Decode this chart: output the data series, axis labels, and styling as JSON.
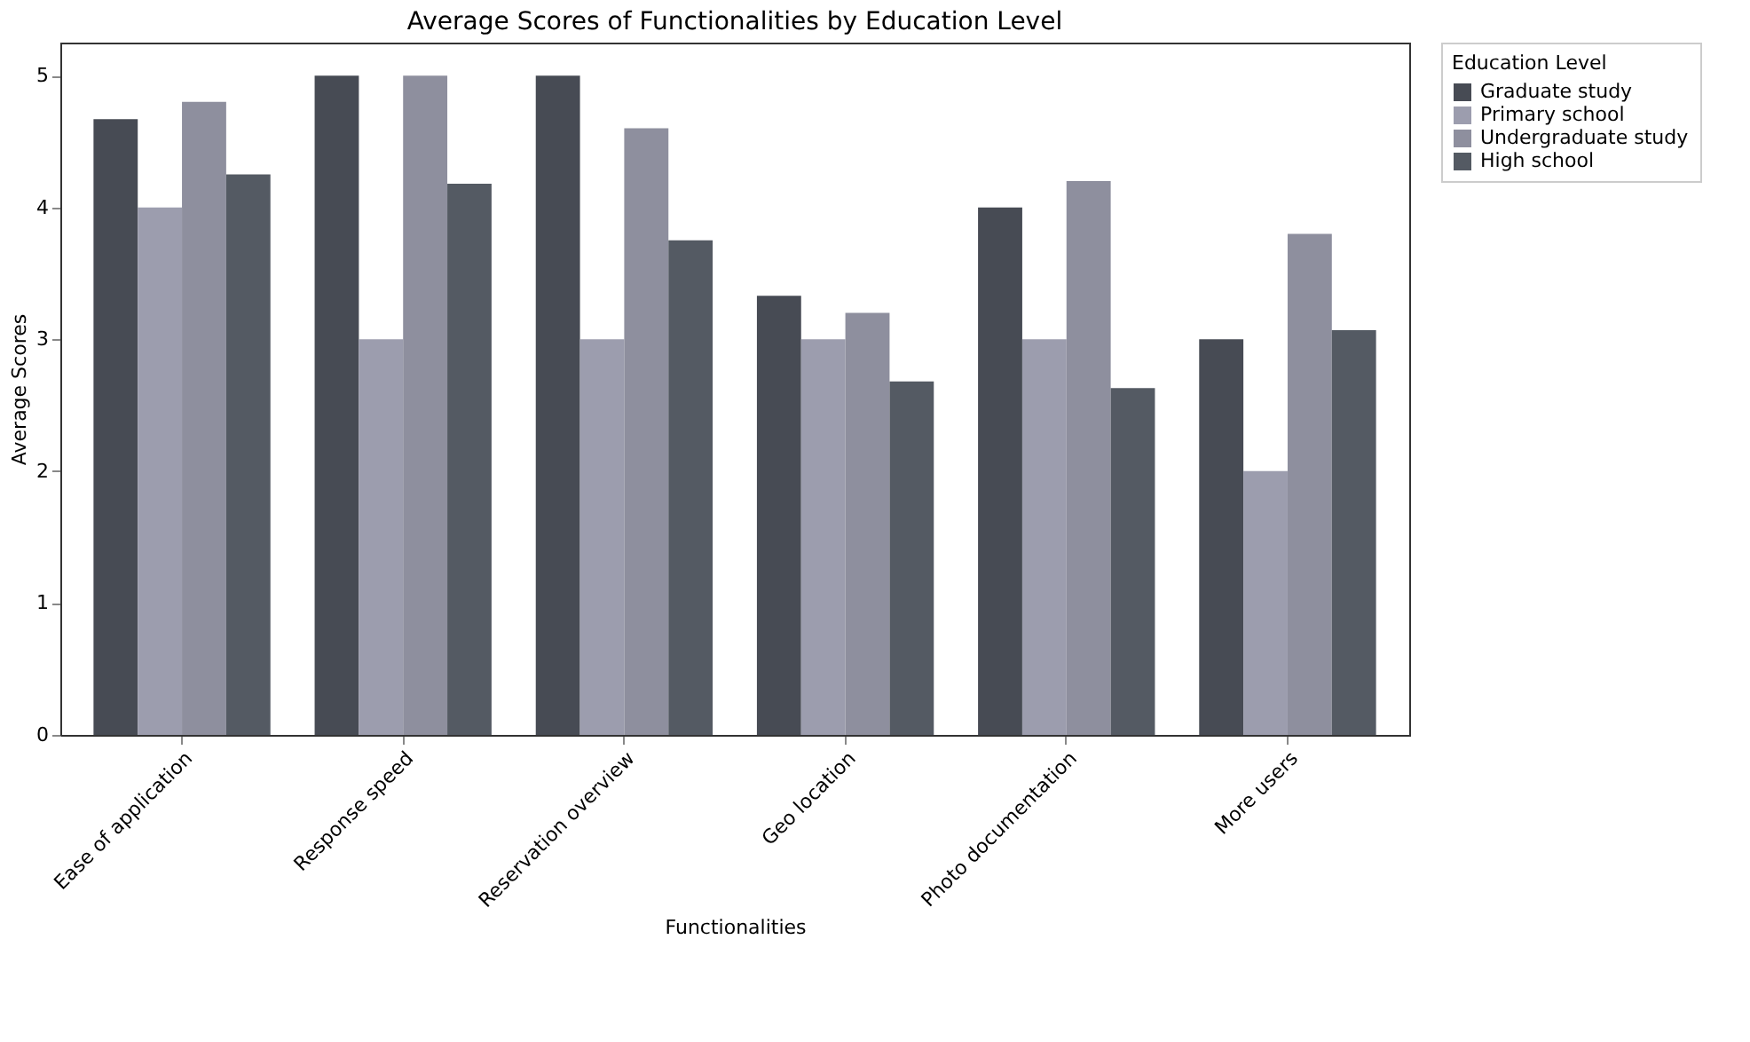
{
  "chart_data": {
    "type": "bar",
    "title": "Average Scores of Functionalities by Education Level",
    "xlabel": "Functionalities",
    "ylabel": "Average Scores",
    "legend_title": "Education Level",
    "categories": [
      "Ease of application",
      "Response speed",
      "Reservation overview",
      "Geo location",
      "Photo documentation",
      "More users"
    ],
    "series": [
      {
        "name": "Graduate study",
        "color": "#474b54",
        "values": [
          4.67,
          5,
          5,
          3.33,
          4,
          3
        ]
      },
      {
        "name": "Primary school",
        "color": "#9c9dae",
        "values": [
          4,
          3,
          3,
          3,
          3,
          2
        ]
      },
      {
        "name": "Undergraduate study",
        "color": "#8e8f9e",
        "values": [
          4.8,
          5,
          4.6,
          3.2,
          4.2,
          3.8
        ]
      },
      {
        "name": "High school",
        "color": "#545a63",
        "values": [
          4.25,
          4.18,
          3.75,
          2.68,
          2.63,
          3.07
        ]
      }
    ],
    "ylim": [
      0,
      5.25
    ],
    "yticks": [
      0,
      1,
      2,
      3,
      4,
      5
    ],
    "grid": false,
    "legend": "top right"
  }
}
